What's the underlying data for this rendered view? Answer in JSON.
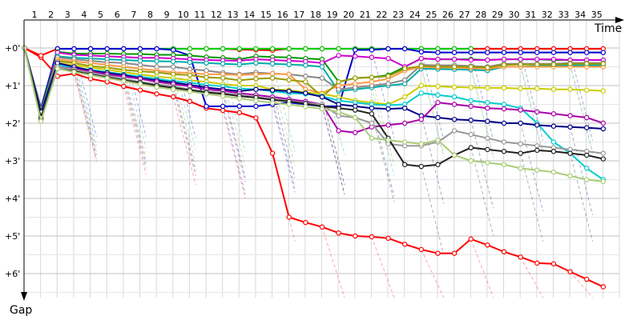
{
  "chart_data": {
    "type": "line",
    "xlabel": "Time",
    "ylabel": "Gap",
    "lap_labels": [
      "1",
      "2",
      "3",
      "4",
      "5",
      "6",
      "7",
      "8",
      "9",
      "10",
      "11",
      "12",
      "13",
      "14",
      "15",
      "16",
      "17",
      "18",
      "19",
      "20",
      "21",
      "22",
      "23",
      "24",
      "25",
      "26",
      "27",
      "28",
      "29",
      "30",
      "31",
      "32",
      "33",
      "34",
      "35"
    ],
    "y_ticks": [
      "+0'",
      "+1'",
      "+2'",
      "+3'",
      "+4'",
      "+5'",
      "+6'"
    ],
    "ylim_minutes": [
      0,
      6.6
    ],
    "xlim_laps": [
      0,
      36
    ],
    "grid": true,
    "series": [
      {
        "color": "#ff0000",
        "values": [
          0,
          0.25,
          0.75,
          0.68,
          0.82,
          0.9,
          1.02,
          1.12,
          1.22,
          1.3,
          1.42,
          1.6,
          1.66,
          1.72,
          1.86,
          2.8,
          4.5,
          4.64,
          4.76,
          4.92,
          5.0,
          5.02,
          5.06,
          5.22,
          5.36,
          5.46,
          5.46,
          5.08,
          5.24,
          5.42,
          5.56,
          5.72,
          5.74,
          5.95,
          6.15,
          6.35
        ]
      },
      {
        "color": "#ff0000",
        "values": [
          0,
          0.2,
          0.02,
          0.02,
          0.02,
          0.02,
          0.02,
          0.02,
          0.02,
          0.02,
          0.02,
          0.02,
          0.02,
          0.04,
          0.05,
          0.06,
          0.02,
          0.02,
          0.02,
          0.02,
          0.02,
          0.02,
          0.02,
          0.02,
          0.02,
          0.02,
          0.02,
          0.02,
          0.02,
          0.02,
          0.02,
          0.02,
          0.02,
          0.02,
          0.02,
          0.02
        ]
      },
      {
        "color": "#00cc00",
        "values": [
          0,
          1.7,
          0.02,
          0.02,
          0.02,
          0.02,
          0.02,
          0.02,
          0.02,
          0.02,
          0.02,
          0.02,
          0.02,
          0.02,
          0.02,
          0.02,
          0.02,
          0.02,
          0.02,
          0.02,
          0.02,
          0.02,
          0.02,
          0.02,
          0.02,
          0.02,
          0.02,
          0.02
        ]
      },
      {
        "color": "#0000cc",
        "values": [
          0,
          1.6,
          0.02,
          0.02,
          0.02,
          0.02,
          0.02,
          0.02,
          0.02,
          0.05,
          0.2,
          1.55,
          1.55,
          1.55,
          1.55,
          1.5,
          1.45,
          1.5,
          1.55,
          1.55,
          0.05,
          0.05,
          0.02,
          0.02,
          0.1,
          0.12,
          0.12,
          0.12,
          0.12,
          0.12,
          0.12,
          0.12,
          0.12,
          0.12,
          0.12,
          0.12
        ]
      },
      {
        "color": "#009900",
        "values": [
          0,
          1.7,
          0.1,
          0.15,
          0.15,
          0.15,
          0.16,
          0.16,
          0.18,
          0.18,
          0.2,
          0.24,
          0.26,
          0.3,
          0.22,
          0.24,
          0.25,
          0.28,
          0.3,
          0.9,
          0.8,
          0.78,
          0.72,
          0.5,
          0.28,
          0.3,
          0.3,
          0.3,
          0.32,
          0.3,
          0.3,
          0.3,
          0.32,
          0.32,
          0.32,
          0.32
        ]
      },
      {
        "color": "#cc00cc",
        "values": [
          0,
          1.8,
          0.12,
          0.18,
          0.2,
          0.22,
          0.24,
          0.26,
          0.26,
          0.28,
          0.3,
          0.32,
          0.33,
          0.34,
          0.3,
          0.32,
          0.34,
          0.36,
          0.4,
          0.2,
          0.22,
          0.25,
          0.28,
          0.5,
          0.28,
          0.3,
          0.3,
          0.32,
          0.32,
          0.3,
          0.3,
          0.3,
          0.3,
          0.32,
          0.32,
          0.32
        ]
      },
      {
        "color": "#00aaaa",
        "values": [
          0,
          1.75,
          0.22,
          0.26,
          0.28,
          0.3,
          0.32,
          0.34,
          0.35,
          0.36,
          0.38,
          0.4,
          0.42,
          0.44,
          0.4,
          0.42,
          0.44,
          0.46,
          0.5,
          1.15,
          1.1,
          1.05,
          1.0,
          0.95,
          0.55,
          0.56,
          0.57,
          0.58,
          0.6,
          0.5,
          0.5,
          0.48,
          0.48,
          0.46,
          0.46,
          0.46
        ]
      },
      {
        "color": "#888888",
        "values": [
          0,
          1.8,
          0.25,
          0.3,
          0.34,
          0.38,
          0.4,
          0.45,
          0.5,
          0.5,
          0.56,
          0.6,
          0.66,
          0.7,
          0.65,
          0.68,
          0.7,
          0.75,
          0.8,
          1.1,
          1.05,
          1.0,
          0.95,
          0.85,
          0.45,
          0.46,
          0.46,
          0.48,
          0.5,
          0.42,
          0.42,
          0.42,
          0.42,
          0.4,
          0.4,
          0.4
        ]
      },
      {
        "color": "#ff9944",
        "values": [
          0,
          1.8,
          0.3,
          0.36,
          0.4,
          0.45,
          0.5,
          0.55,
          0.6,
          0.65,
          0.66,
          0.7,
          0.7,
          0.72,
          0.7,
          0.68,
          0.7,
          1.1,
          1.2,
          1.0,
          0.95,
          0.9,
          0.82,
          0.6,
          0.5,
          0.52,
          0.52,
          0.54,
          0.55,
          0.5,
          0.5,
          0.5,
          0.5,
          0.5,
          0.5,
          0.5
        ]
      },
      {
        "color": "#999900",
        "values": [
          0,
          1.8,
          0.35,
          0.4,
          0.48,
          0.52,
          0.58,
          0.62,
          0.65,
          0.7,
          0.72,
          0.78,
          0.8,
          0.86,
          0.82,
          0.8,
          0.85,
          0.9,
          1.3,
          0.9,
          0.8,
          0.78,
          0.75,
          0.55,
          0.48,
          0.5,
          0.5,
          0.5,
          0.52,
          0.45,
          0.44,
          0.44,
          0.44,
          0.42,
          0.42,
          0.42
        ]
      },
      {
        "color": "#cccc00",
        "values": [
          0,
          1.65,
          0.4,
          0.46,
          0.52,
          0.58,
          0.64,
          0.7,
          0.76,
          0.8,
          0.86,
          0.9,
          0.96,
          1.0,
          1.0,
          1.1,
          1.12,
          1.18,
          1.22,
          1.3,
          1.4,
          1.45,
          1.5,
          1.3,
          1.0,
          1.02,
          1.04,
          1.05,
          1.06,
          1.06,
          1.08,
          1.08,
          1.1,
          1.1,
          1.12,
          1.14
        ]
      },
      {
        "color": "#00cccc",
        "values": [
          0,
          1.75,
          0.45,
          0.52,
          0.58,
          0.64,
          0.7,
          0.76,
          0.82,
          0.88,
          0.92,
          0.98,
          1.02,
          1.08,
          1.1,
          1.15,
          1.2,
          1.22,
          1.28,
          1.4,
          1.45,
          1.5,
          1.52,
          1.5,
          1.2,
          1.25,
          1.3,
          1.4,
          1.45,
          1.5,
          1.6,
          2.0,
          2.5,
          2.8,
          3.2,
          3.5
        ]
      },
      {
        "color": "#000088",
        "values": [
          0,
          1.7,
          0.4,
          0.5,
          0.6,
          0.66,
          0.72,
          0.8,
          0.86,
          0.92,
          0.98,
          1.05,
          1.1,
          1.15,
          1.1,
          1.12,
          1.15,
          1.2,
          1.3,
          1.5,
          1.55,
          1.6,
          1.62,
          1.6,
          1.8,
          1.85,
          1.9,
          1.92,
          1.95,
          2.0,
          2.0,
          2.05,
          2.08,
          2.1,
          2.12,
          2.15
        ]
      },
      {
        "color": "#aa00aa",
        "values": [
          0,
          1.9,
          0.5,
          0.56,
          0.62,
          0.7,
          0.76,
          0.82,
          0.9,
          0.96,
          1.02,
          1.1,
          1.14,
          1.2,
          1.25,
          1.3,
          1.36,
          1.42,
          1.5,
          2.2,
          2.25,
          2.1,
          2.05,
          2.0,
          1.9,
          1.45,
          1.5,
          1.55,
          1.6,
          1.62,
          1.65,
          1.7,
          1.75,
          1.8,
          1.85,
          2.0
        ]
      },
      {
        "color": "#999999",
        "values": [
          0,
          1.9,
          0.5,
          0.58,
          0.66,
          0.74,
          0.82,
          0.9,
          0.96,
          1.02,
          1.1,
          1.16,
          1.2,
          1.25,
          1.3,
          1.35,
          1.4,
          1.46,
          1.5,
          1.8,
          1.85,
          2.0,
          2.55,
          2.6,
          2.6,
          2.5,
          2.2,
          2.3,
          2.4,
          2.5,
          2.55,
          2.6,
          2.65,
          2.7,
          2.75,
          2.8
        ]
      },
      {
        "color": "#222222",
        "values": [
          0,
          1.85,
          0.55,
          0.62,
          0.7,
          0.78,
          0.86,
          0.92,
          1.0,
          1.06,
          1.12,
          1.18,
          1.22,
          1.28,
          1.32,
          1.38,
          1.42,
          1.48,
          1.55,
          1.6,
          1.65,
          1.75,
          2.4,
          3.1,
          3.15,
          3.1,
          2.85,
          2.65,
          2.7,
          2.75,
          2.8,
          2.72,
          2.75,
          2.8,
          2.85,
          2.95
        ]
      },
      {
        "color": "#aacc77",
        "values": [
          0,
          1.95,
          0.55,
          0.64,
          0.72,
          0.8,
          0.88,
          0.96,
          1.04,
          1.1,
          1.16,
          1.22,
          1.28,
          1.34,
          1.4,
          1.46,
          1.5,
          1.56,
          1.62,
          1.7,
          1.85,
          2.4,
          2.45,
          2.5,
          2.55,
          2.45,
          2.85,
          3.0,
          3.05,
          3.1,
          3.2,
          3.25,
          3.3,
          3.4,
          3.5,
          3.55
        ]
      }
    ]
  }
}
